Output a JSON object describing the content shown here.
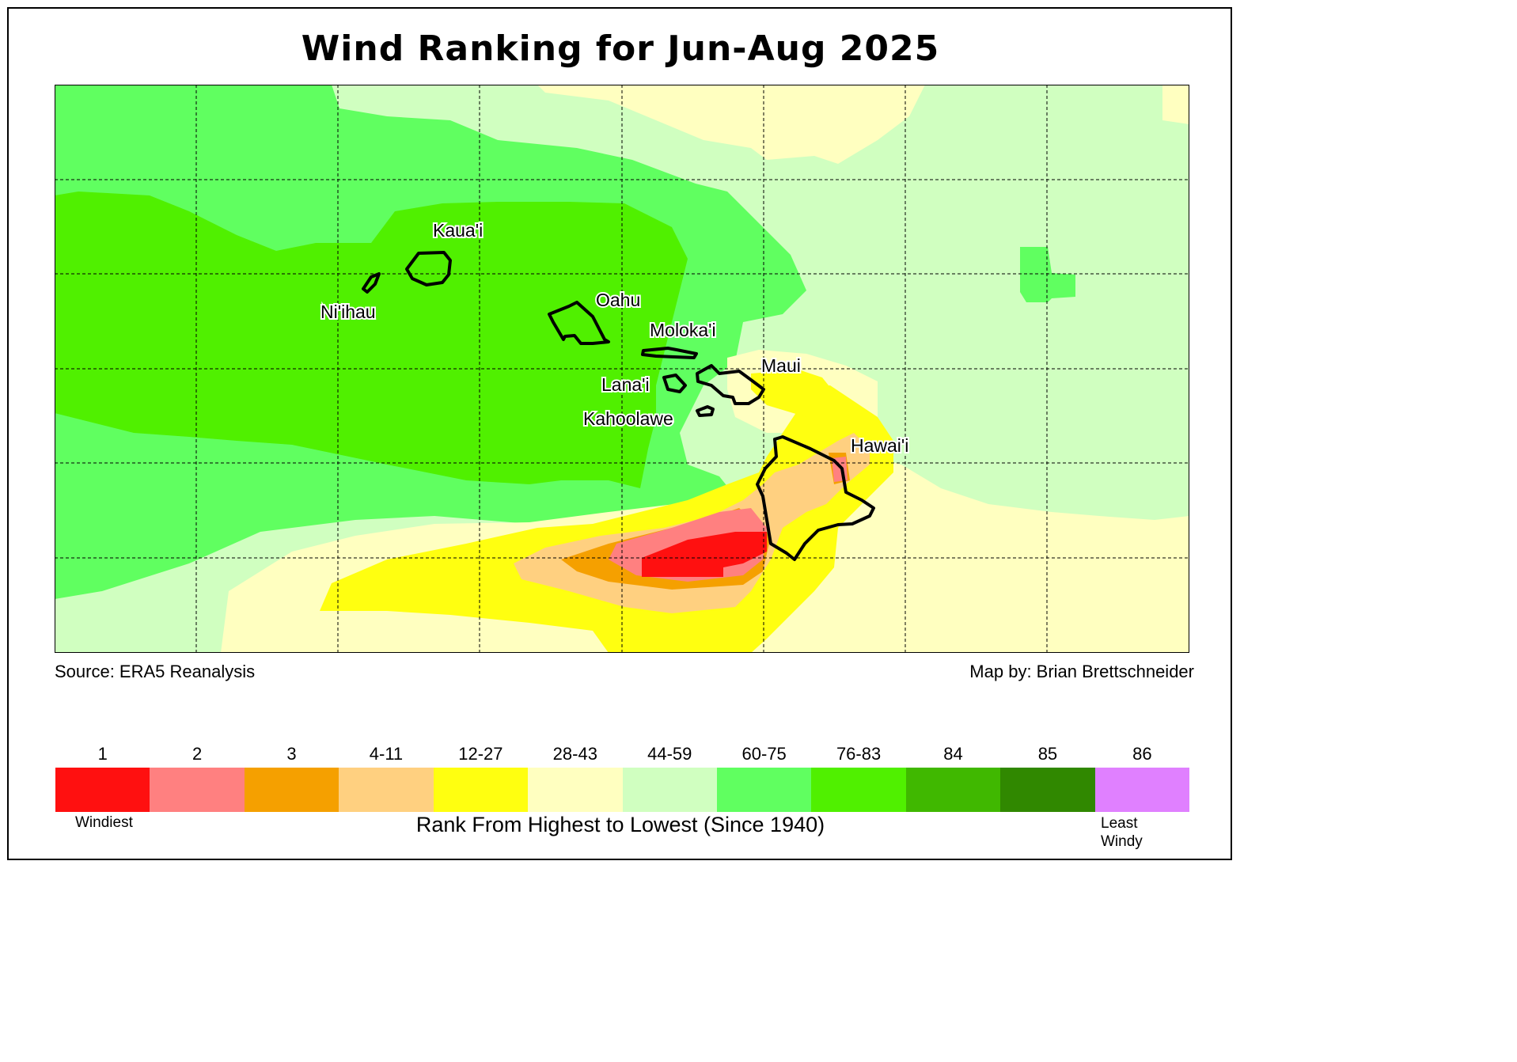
{
  "title": "Wind Ranking for Jun-Aug 2025",
  "source": "Source: ERA5 Reanalysis",
  "credit": "Map by: Brian Brettschneider",
  "islands": [
    "Kaua'i",
    "Ni'ihau",
    "Oahu",
    "Moloka'i",
    "Maui",
    "Lana'i",
    "Kahoolawe",
    "Hawai'i"
  ],
  "legend": {
    "bins": [
      {
        "label": "1",
        "color": "#ff1010"
      },
      {
        "label": "2",
        "color": "#ff8080"
      },
      {
        "label": "3",
        "color": "#f5a000"
      },
      {
        "label": "4-11",
        "color": "#ffd080"
      },
      {
        "label": "12-27",
        "color": "#ffff10"
      },
      {
        "label": "28-43",
        "color": "#ffffc0"
      },
      {
        "label": "44-59",
        "color": "#d0ffc0"
      },
      {
        "label": "60-75",
        "color": "#60ff60"
      },
      {
        "label": "76-83",
        "color": "#50f000"
      },
      {
        "label": "84",
        "color": "#40b800"
      },
      {
        "label": "85",
        "color": "#308800"
      },
      {
        "label": "86",
        "color": "#e080ff"
      }
    ],
    "low_end_label": "Windiest",
    "high_end_label": "Least Windy",
    "axis_title": "Rank From Highest to Lowest (Since 1940)"
  }
}
